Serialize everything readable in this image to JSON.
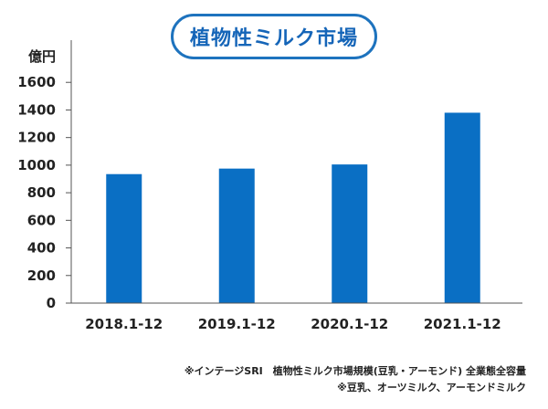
{
  "colors": {
    "bar": "#0a6fc4",
    "axis": "#555555",
    "title_border": "#1e73be",
    "title_text": "#1565b8"
  },
  "chart_data": {
    "type": "bar",
    "title": "植物性ミルク市場",
    "ylabel": "億円",
    "xlabel": "",
    "categories": [
      "2018.1-12",
      "2019.1-12",
      "2020.1-12",
      "2021.1-12"
    ],
    "values": [
      935,
      975,
      1005,
      1380
    ],
    "ylim": [
      0,
      1800
    ],
    "yticks": [
      0,
      200,
      400,
      600,
      800,
      1000,
      1200,
      1400,
      1600
    ],
    "grid": false,
    "legend": "none"
  },
  "notes": [
    "※インテージSRI　植物性ミルク市場規模(豆乳・アーモンド) 全業態全容量",
    "※豆乳、オーツミルク、アーモンドミルク"
  ]
}
